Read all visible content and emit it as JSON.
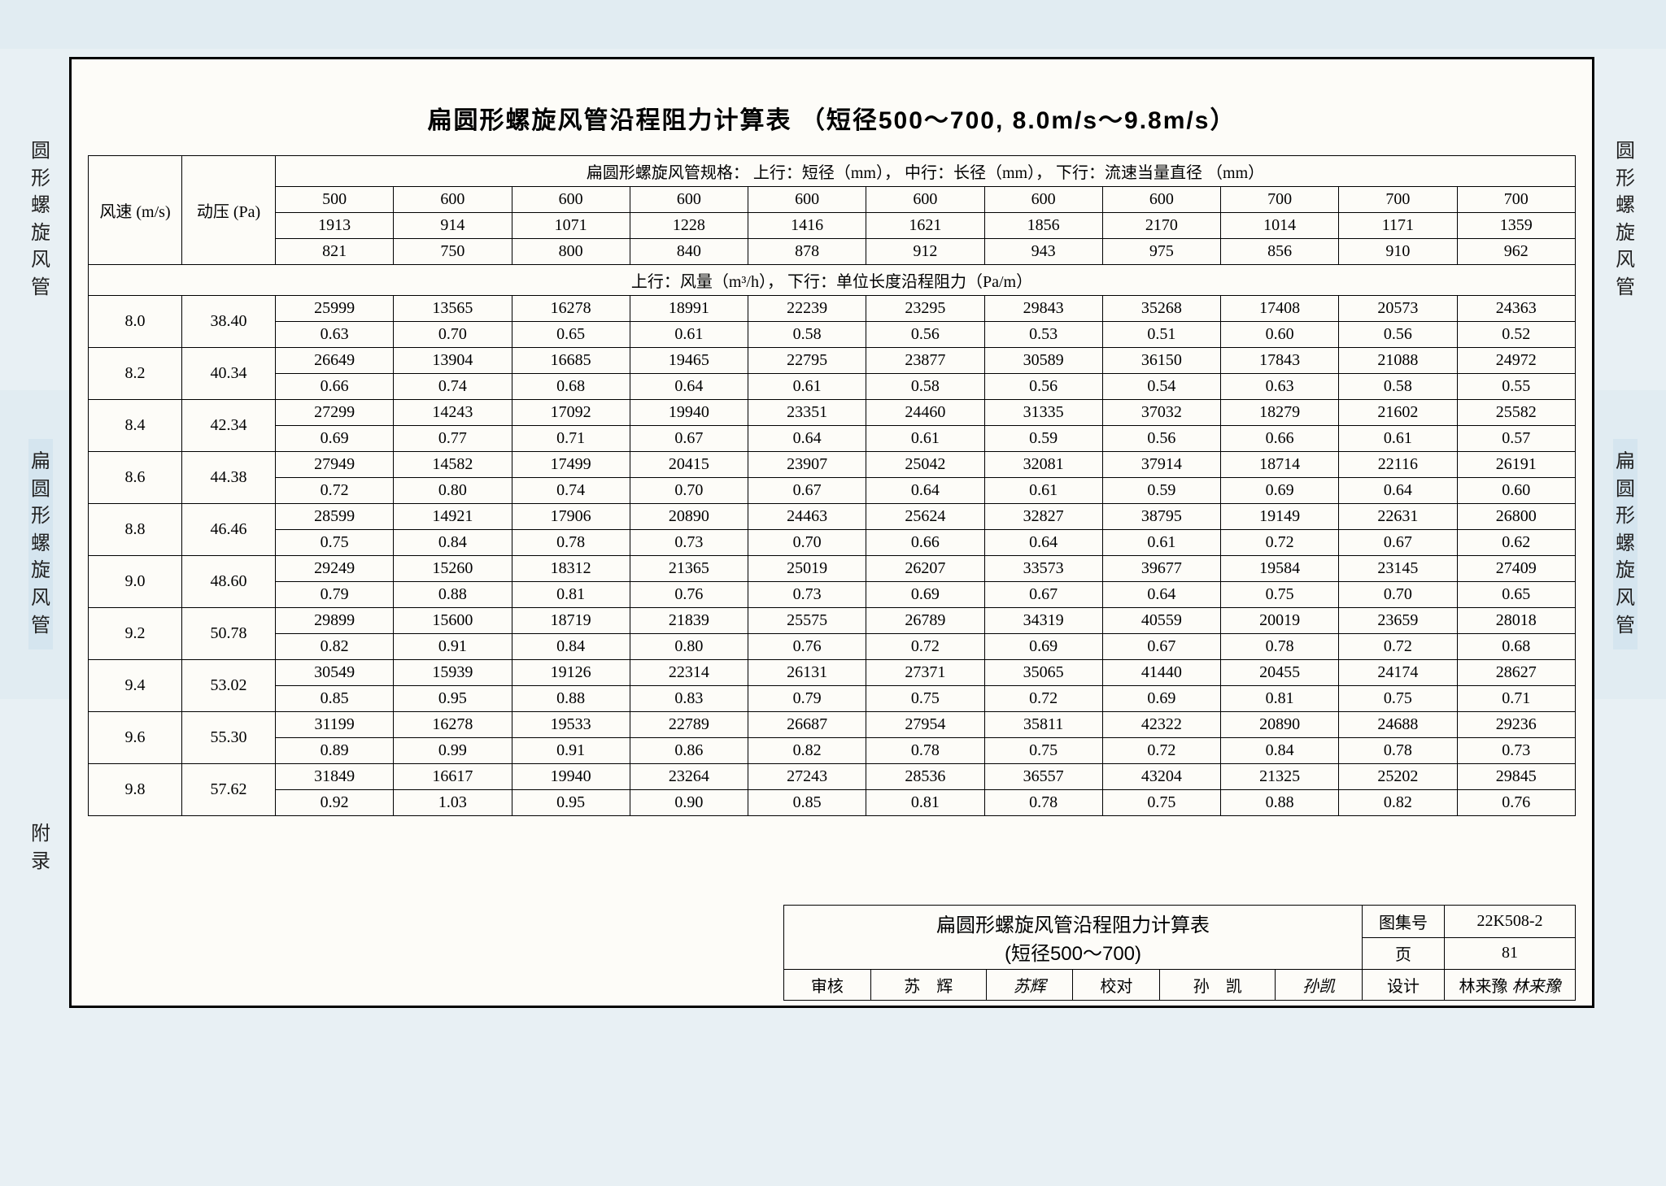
{
  "side_labels": {
    "left_top": "圆形螺旋风管",
    "left_mid": "扁圆形螺旋风管",
    "left_bot": "附录",
    "right_top": "圆形螺旋风管",
    "right_mid": "扁圆形螺旋风管"
  },
  "title": "扁圆形螺旋风管沿程阻力计算表 （短径500～700, 8.0m/s～9.8m/s）",
  "header_spec_label": "扁圆形螺旋风管规格： 上行：短径（mm）， 中行：长径（mm）， 下行：流速当量直径 （mm）",
  "header_data_label": "上行：风量（m³/h）， 下行：单位长度沿程阻力（Pa/m）",
  "col_labels": {
    "speed": "风速\n(m/s)",
    "pressure": "动压\n(Pa)"
  },
  "spec_rows": {
    "short": [
      "500",
      "600",
      "600",
      "600",
      "600",
      "600",
      "600",
      "600",
      "700",
      "700",
      "700"
    ],
    "long": [
      "1913",
      "914",
      "1071",
      "1228",
      "1416",
      "1621",
      "1856",
      "2170",
      "1014",
      "1171",
      "1359"
    ],
    "equiv": [
      "821",
      "750",
      "800",
      "840",
      "878",
      "912",
      "943",
      "975",
      "856",
      "910",
      "962"
    ]
  },
  "rows": [
    {
      "speed": "8.0",
      "press": "38.40",
      "flow": [
        "25999",
        "13565",
        "16278",
        "18991",
        "22239",
        "23295",
        "29843",
        "35268",
        "17408",
        "20573",
        "24363"
      ],
      "loss": [
        "0.63",
        "0.70",
        "0.65",
        "0.61",
        "0.58",
        "0.56",
        "0.53",
        "0.51",
        "0.60",
        "0.56",
        "0.52"
      ]
    },
    {
      "speed": "8.2",
      "press": "40.34",
      "flow": [
        "26649",
        "13904",
        "16685",
        "19465",
        "22795",
        "23877",
        "30589",
        "36150",
        "17843",
        "21088",
        "24972"
      ],
      "loss": [
        "0.66",
        "0.74",
        "0.68",
        "0.64",
        "0.61",
        "0.58",
        "0.56",
        "0.54",
        "0.63",
        "0.58",
        "0.55"
      ]
    },
    {
      "speed": "8.4",
      "press": "42.34",
      "flow": [
        "27299",
        "14243",
        "17092",
        "19940",
        "23351",
        "24460",
        "31335",
        "37032",
        "18279",
        "21602",
        "25582"
      ],
      "loss": [
        "0.69",
        "0.77",
        "0.71",
        "0.67",
        "0.64",
        "0.61",
        "0.59",
        "0.56",
        "0.66",
        "0.61",
        "0.57"
      ]
    },
    {
      "speed": "8.6",
      "press": "44.38",
      "flow": [
        "27949",
        "14582",
        "17499",
        "20415",
        "23907",
        "25042",
        "32081",
        "37914",
        "18714",
        "22116",
        "26191"
      ],
      "loss": [
        "0.72",
        "0.80",
        "0.74",
        "0.70",
        "0.67",
        "0.64",
        "0.61",
        "0.59",
        "0.69",
        "0.64",
        "0.60"
      ]
    },
    {
      "speed": "8.8",
      "press": "46.46",
      "flow": [
        "28599",
        "14921",
        "17906",
        "20890",
        "24463",
        "25624",
        "32827",
        "38795",
        "19149",
        "22631",
        "26800"
      ],
      "loss": [
        "0.75",
        "0.84",
        "0.78",
        "0.73",
        "0.70",
        "0.66",
        "0.64",
        "0.61",
        "0.72",
        "0.67",
        "0.62"
      ]
    },
    {
      "speed": "9.0",
      "press": "48.60",
      "flow": [
        "29249",
        "15260",
        "18312",
        "21365",
        "25019",
        "26207",
        "33573",
        "39677",
        "19584",
        "23145",
        "27409"
      ],
      "loss": [
        "0.79",
        "0.88",
        "0.81",
        "0.76",
        "0.73",
        "0.69",
        "0.67",
        "0.64",
        "0.75",
        "0.70",
        "0.65"
      ]
    },
    {
      "speed": "9.2",
      "press": "50.78",
      "flow": [
        "29899",
        "15600",
        "18719",
        "21839",
        "25575",
        "26789",
        "34319",
        "40559",
        "20019",
        "23659",
        "28018"
      ],
      "loss": [
        "0.82",
        "0.91",
        "0.84",
        "0.80",
        "0.76",
        "0.72",
        "0.69",
        "0.67",
        "0.78",
        "0.72",
        "0.68"
      ]
    },
    {
      "speed": "9.4",
      "press": "53.02",
      "flow": [
        "30549",
        "15939",
        "19126",
        "22314",
        "26131",
        "27371",
        "35065",
        "41440",
        "20455",
        "24174",
        "28627"
      ],
      "loss": [
        "0.85",
        "0.95",
        "0.88",
        "0.83",
        "0.79",
        "0.75",
        "0.72",
        "0.69",
        "0.81",
        "0.75",
        "0.71"
      ]
    },
    {
      "speed": "9.6",
      "press": "55.30",
      "flow": [
        "31199",
        "16278",
        "19533",
        "22789",
        "26687",
        "27954",
        "35811",
        "42322",
        "20890",
        "24688",
        "29236"
      ],
      "loss": [
        "0.89",
        "0.99",
        "0.91",
        "0.86",
        "0.82",
        "0.78",
        "0.75",
        "0.72",
        "0.84",
        "0.78",
        "0.73"
      ]
    },
    {
      "speed": "9.8",
      "press": "57.62",
      "flow": [
        "31849",
        "16617",
        "19940",
        "23264",
        "27243",
        "28536",
        "36557",
        "43204",
        "21325",
        "25202",
        "29845"
      ],
      "loss": [
        "0.92",
        "1.03",
        "0.95",
        "0.90",
        "0.85",
        "0.81",
        "0.78",
        "0.75",
        "0.88",
        "0.82",
        "0.76"
      ]
    }
  ],
  "footer": {
    "title1": "扁圆形螺旋风管沿程阻力计算表",
    "title2": "(短径500～700)",
    "tuji_label": "图集号",
    "tuji_value": "22K508-2",
    "page_label": "页",
    "page_value": "81",
    "shenhe_label": "审核",
    "shenhe_name": "苏　辉",
    "shenhe_sig": "苏辉",
    "jiaodui_label": "校对",
    "jiaodui_name": "孙　凯",
    "jiaodui_sig": "孙凯",
    "sheji_label": "设计",
    "sheji_name": "林来豫",
    "sheji_sig": "林来豫"
  },
  "style": {
    "page_bg": "#fdfcf8",
    "outer_bg": "#e8f0f4",
    "band_bg": "#e1ecf2",
    "border_color": "#000000",
    "text_color": "#222222",
    "title_fontsize": 30,
    "table_fontsize": 20,
    "side_fontsize": 24
  }
}
